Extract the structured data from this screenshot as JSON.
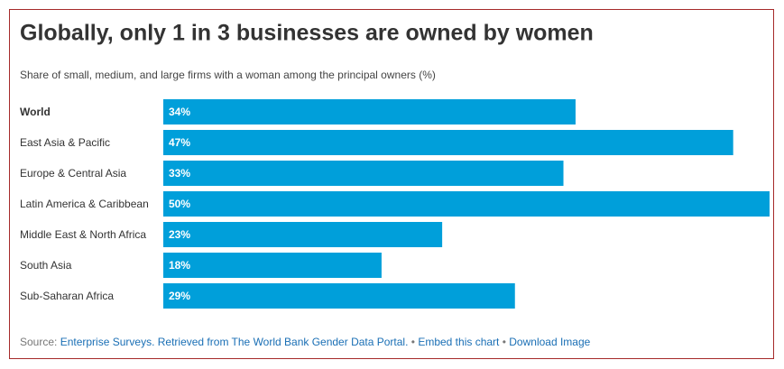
{
  "chart_data": {
    "type": "bar",
    "orientation": "horizontal",
    "title": "Globally, only 1 in 3 businesses are owned by women",
    "subtitle": "Share of small, medium, and large firms with a woman among the principal owners (%)",
    "categories": [
      "World",
      "East Asia & Pacific",
      "Europe & Central Asia",
      "Latin America & Caribbean",
      "Middle East & North Africa",
      "South Asia",
      "Sub-Saharan Africa"
    ],
    "values": [
      34,
      47,
      33,
      50,
      23,
      18,
      29
    ],
    "value_labels": [
      "34%",
      "47%",
      "33%",
      "50%",
      "23%",
      "18%",
      "29%"
    ],
    "color": "#009fda",
    "highlight_category": "World",
    "source": {
      "label": "Source:",
      "text": "Enterprise Surveys. Retrieved from The World Bank Gender Data Portal.",
      "separator": "•",
      "links": [
        "Embed this chart",
        "Download Image"
      ]
    }
  }
}
